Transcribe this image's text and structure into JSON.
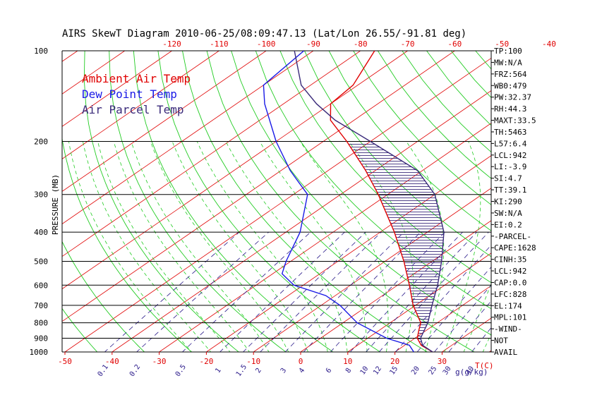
{
  "chart_data": {
    "type": "line",
    "title": "AIRS SkewT Diagram 2010-06-25/08:09:47.13 (Lat/Lon 26.55/-91.81 deg)",
    "ylabel": "PRESSURE (MB)",
    "xlabel_right": "T(C)",
    "mixing_label": "g(g/kg)",
    "y_scale": "log",
    "ylim": [
      1000,
      100
    ],
    "xlim_at_1000mb": [
      -52,
      38
    ],
    "pressure_lines": [
      1000,
      900,
      800,
      700,
      600,
      500,
      400,
      300,
      200,
      100
    ],
    "left_tick_labels": [
      "100",
      "200",
      "300",
      "400",
      "500",
      "600",
      "700",
      "800",
      "900",
      "1000"
    ],
    "bottom_temp_ticks": [
      "-50",
      "-40",
      "-30",
      "-20",
      "-10",
      "0",
      "10",
      "20",
      "30"
    ],
    "top_temp_ticks": [
      "-120",
      "-110",
      "-100",
      "-90",
      "-80",
      "-70",
      "-60",
      "-50",
      "-40"
    ],
    "mixing_ratio_ticks": [
      "0.1",
      "0.2",
      "0.5",
      "1",
      "1.5",
      "2",
      "3",
      "4",
      "6",
      "8",
      "10",
      "12",
      "15",
      "20",
      "25",
      "30",
      "40"
    ],
    "legend": [
      {
        "label": "Ambient Air Temp",
        "color": "#e00000"
      },
      {
        "label": "Dew Point Temp",
        "color": "#1a1ae6"
      },
      {
        "label": "Air Parcel Temp",
        "color": "#3a2a7a"
      }
    ],
    "series": [
      {
        "name": "Ambient Air Temp",
        "color": "#e00000",
        "points": [
          [
            1000,
            28
          ],
          [
            950,
            23.5
          ],
          [
            900,
            20.5
          ],
          [
            850,
            18.5
          ],
          [
            800,
            16.5
          ],
          [
            700,
            9.5
          ],
          [
            600,
            2.5
          ],
          [
            500,
            -6
          ],
          [
            400,
            -17
          ],
          [
            300,
            -32
          ],
          [
            250,
            -42
          ],
          [
            200,
            -55
          ],
          [
            170,
            -65
          ],
          [
            150,
            -70
          ],
          [
            130,
            -71
          ],
          [
            100,
            -77
          ]
        ]
      },
      {
        "name": "Dew Point Temp",
        "color": "#1a1ae6",
        "points": [
          [
            1000,
            24
          ],
          [
            950,
            21
          ],
          [
            900,
            14
          ],
          [
            800,
            3
          ],
          [
            700,
            -6
          ],
          [
            650,
            -12
          ],
          [
            600,
            -22
          ],
          [
            550,
            -28
          ],
          [
            500,
            -31
          ],
          [
            400,
            -37
          ],
          [
            300,
            -47
          ],
          [
            250,
            -58
          ],
          [
            200,
            -70
          ],
          [
            150,
            -84
          ],
          [
            130,
            -90
          ],
          [
            100,
            -92
          ]
        ]
      },
      {
        "name": "Air Parcel Temp",
        "color": "#3a2a7a",
        "points": [
          [
            1000,
            28
          ],
          [
            950,
            23.8
          ],
          [
            900,
            21.2
          ],
          [
            800,
            18
          ],
          [
            700,
            13.5
          ],
          [
            600,
            8.5
          ],
          [
            500,
            2
          ],
          [
            400,
            -6.5
          ],
          [
            300,
            -20
          ],
          [
            250,
            -31
          ],
          [
            200,
            -50
          ],
          [
            170,
            -64
          ],
          [
            150,
            -73
          ],
          [
            130,
            -82
          ],
          [
            100,
            -94
          ]
        ]
      }
    ],
    "cape_shading": {
      "from_mb": 950,
      "to_mb": 200,
      "color": "#3a2a7a"
    },
    "indices": [
      "TP:100",
      "MW:N/A",
      "FRZ:564",
      "WB0:479",
      "PW:32.37",
      "RH:44.3",
      "MAXT:33.5",
      "TH:5463",
      "L57:6.4",
      "LCL:942",
      "LI:-3.9",
      "SI:4.7",
      "TT:39.1",
      "KI:290",
      "SW:N/A",
      "EI:0.2",
      "-PARCEL-",
      "CAPE:1628",
      "CINH:35",
      "LCL:942",
      "CAP:0.0",
      "LFC:828",
      "EL:174",
      "MPL:101",
      "-WIND-",
      "NOT",
      "AVAIL"
    ],
    "colors": {
      "isotherm": "#e00000",
      "dry_adiabat": "#22cc22",
      "moist_adiabat": "#22cc22",
      "mixing_ratio": "#2a1a8a",
      "isobar": "#000000",
      "tick": "#e00000"
    }
  }
}
